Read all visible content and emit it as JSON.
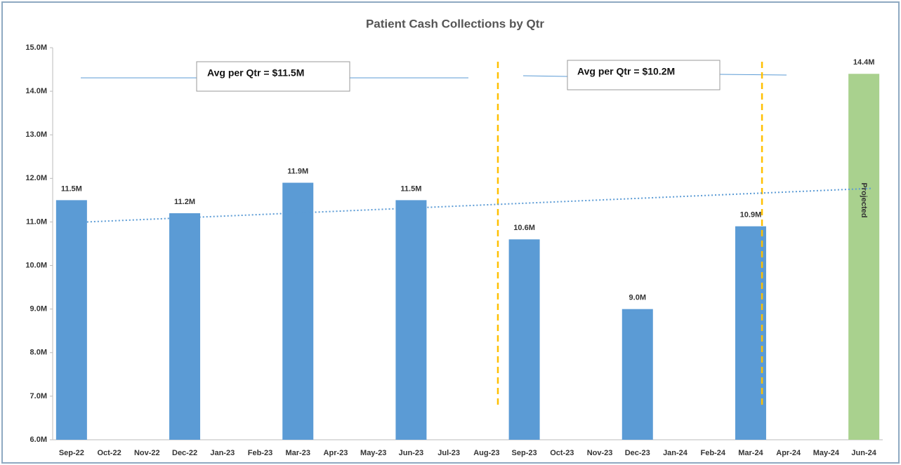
{
  "chart_data": {
    "type": "bar",
    "title": "Patient Cash Collections by Qtr",
    "categories": [
      "Sep-22",
      "Oct-22",
      "Nov-22",
      "Dec-22",
      "Jan-23",
      "Feb-23",
      "Mar-23",
      "Apr-23",
      "May-23",
      "Jun-23",
      "Jul-23",
      "Aug-23",
      "Sep-23",
      "Oct-23",
      "Nov-23",
      "Dec-23",
      "Jan-24",
      "Feb-24",
      "Mar-24",
      "Apr-24",
      "May-24",
      "Jun-24"
    ],
    "values": [
      11.5,
      null,
      null,
      11.2,
      null,
      null,
      11.9,
      null,
      null,
      11.5,
      null,
      null,
      10.6,
      null,
      null,
      9.0,
      null,
      null,
      10.9,
      null,
      null,
      14.4
    ],
    "value_labels": [
      "11.5M",
      null,
      null,
      "11.2M",
      null,
      null,
      "11.9M",
      null,
      null,
      "11.5M",
      null,
      null,
      "10.6M",
      null,
      null,
      "9.0M",
      null,
      null,
      "10.9M",
      null,
      null,
      "14.4M"
    ],
    "colors": [
      "#5b9bd5",
      null,
      null,
      "#5b9bd5",
      null,
      null,
      "#5b9bd5",
      null,
      null,
      "#5b9bd5",
      null,
      null,
      "#5b9bd5",
      null,
      null,
      "#5b9bd5",
      null,
      null,
      "#5b9bd5",
      null,
      null,
      "#a9d18e"
    ],
    "ylim": [
      6,
      15
    ],
    "yticks": [
      {
        "value": 6,
        "label": "6.0M"
      },
      {
        "value": 7,
        "label": "7.0M"
      },
      {
        "value": 8,
        "label": "8.0M"
      },
      {
        "value": 9,
        "label": "9.0M"
      },
      {
        "value": 10,
        "label": "10.0M"
      },
      {
        "value": 11,
        "label": "11.0M"
      },
      {
        "value": 12,
        "label": "12.0M"
      },
      {
        "value": 13,
        "label": "13.0M"
      },
      {
        "value": 14,
        "label": "14.0M"
      },
      {
        "value": {
          "v": 15
        },
        "label": "15.0M"
      }
    ],
    "trendline": [
      11.0,
      11.77
    ],
    "trend_color": "#5b9bd5",
    "annotations": [
      "Avg per Qtr = $11.5M",
      "Avg per Qtr = $10.2M",
      "Projected"
    ],
    "grid": false
  }
}
